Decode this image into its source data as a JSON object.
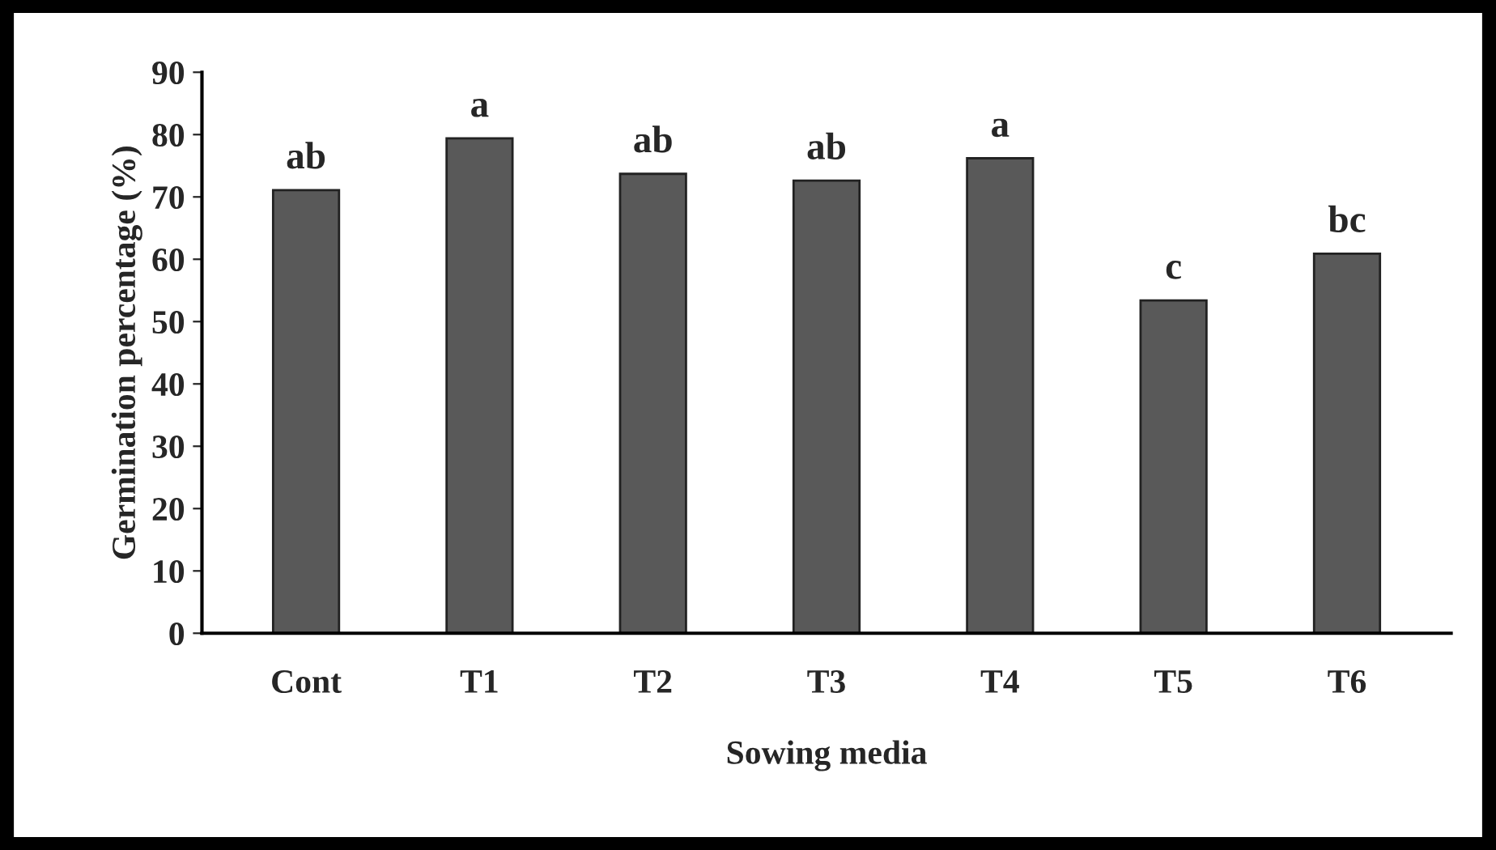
{
  "chart_data": {
    "type": "bar",
    "xlabel": "Sowing media",
    "ylabel": "Germination percentage (%)",
    "categories": [
      "Cont",
      "T1",
      "T2",
      "T3",
      "T4",
      "T5",
      "T6"
    ],
    "values": [
      71.1,
      79.4,
      73.7,
      72.6,
      76.2,
      53.4,
      60.9
    ],
    "color": "#595959",
    "ylim": [
      0,
      90
    ],
    "yticks": [
      0,
      10,
      20,
      30,
      40,
      50,
      60,
      70,
      80,
      90
    ],
    "grid": false,
    "legend": false,
    "annotations": [
      {
        "text": "ab",
        "x": "Cont",
        "y": 71.1
      },
      {
        "text": "a",
        "x": "T1",
        "y": 79.4
      },
      {
        "text": "ab",
        "x": "T2",
        "y": 73.7
      },
      {
        "text": "ab",
        "x": "T3",
        "y": 72.6
      },
      {
        "text": "a",
        "x": "T4",
        "y": 76.2
      },
      {
        "text": "c",
        "x": "T5",
        "y": 53.4
      },
      {
        "text": "bc",
        "x": "T6",
        "y": 60.9
      }
    ]
  }
}
